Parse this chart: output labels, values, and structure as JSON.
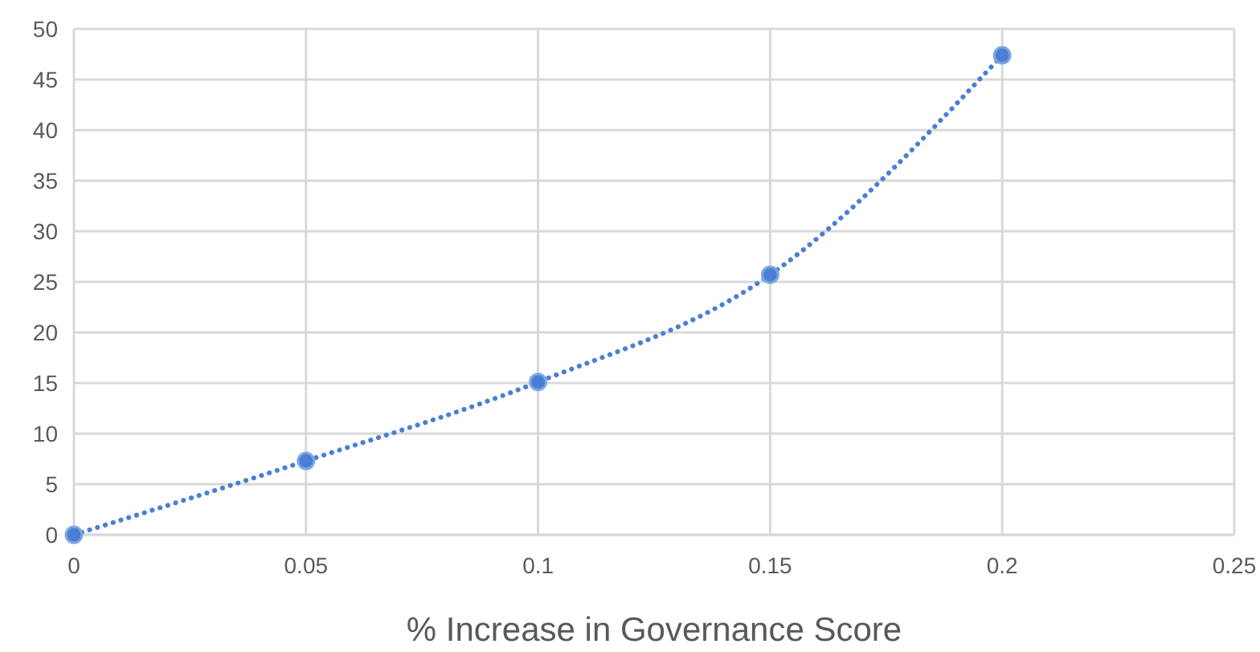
{
  "chart_data": {
    "type": "line",
    "xlabel": "% Increase in Governance Score",
    "x": [
      0,
      0.05,
      0.1,
      0.15,
      0.2
    ],
    "series": [
      {
        "color": "#4a7fd4",
        "values": [
          0,
          7.3,
          15.1,
          25.7,
          47.4
        ]
      }
    ],
    "xlim": [
      0,
      0.25
    ],
    "xticks": [
      0,
      0.05,
      0.1,
      0.15,
      0.2,
      0.25
    ],
    "ylim": [
      0,
      50
    ],
    "yticks": [
      0,
      5,
      10,
      15,
      20,
      25,
      30,
      35,
      40,
      45,
      50
    ],
    "grid": true,
    "marker": "circle",
    "line_style": "dotted"
  }
}
